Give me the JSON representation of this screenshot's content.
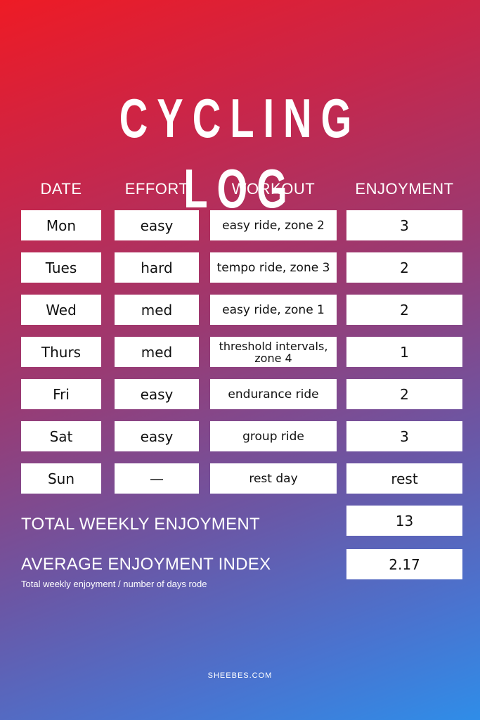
{
  "title": "CYCLING LOG",
  "headers": {
    "date": "DATE",
    "effort": "EFFORT",
    "workout": "WORKOUT",
    "enjoyment": "ENJOYMENT"
  },
  "rows": [
    {
      "date": "Mon",
      "effort": "easy",
      "workout": "easy ride, zone 2",
      "enjoyment": "3"
    },
    {
      "date": "Tues",
      "effort": "hard",
      "workout": "tempo ride, zone 3",
      "enjoyment": "2"
    },
    {
      "date": "Wed",
      "effort": "med",
      "workout": "easy ride, zone 1",
      "enjoyment": "2"
    },
    {
      "date": "Thurs",
      "effort": "med",
      "workout": "threshold intervals, zone 4",
      "enjoyment": "1"
    },
    {
      "date": "Fri",
      "effort": "easy",
      "workout": "endurance ride",
      "enjoyment": "2"
    },
    {
      "date": "Sat",
      "effort": "easy",
      "workout": "group ride",
      "enjoyment": "3"
    },
    {
      "date": "Sun",
      "effort": "—",
      "workout": "rest day",
      "enjoyment": "rest"
    }
  ],
  "summary": {
    "total_label": "TOTAL WEEKLY ENJOYMENT",
    "total_value": "13",
    "average_label": "AVERAGE ENJOYMENT INDEX",
    "average_value": "2.17",
    "average_note": "Total weekly enjoyment / number of days rode"
  },
  "footer": "SHEEBES.COM",
  "colors": {
    "gradient_top": "#ee1b25",
    "gradient_bottom": "#2f8de8",
    "cell_background": "#ffffff",
    "cell_text": "#111111"
  }
}
